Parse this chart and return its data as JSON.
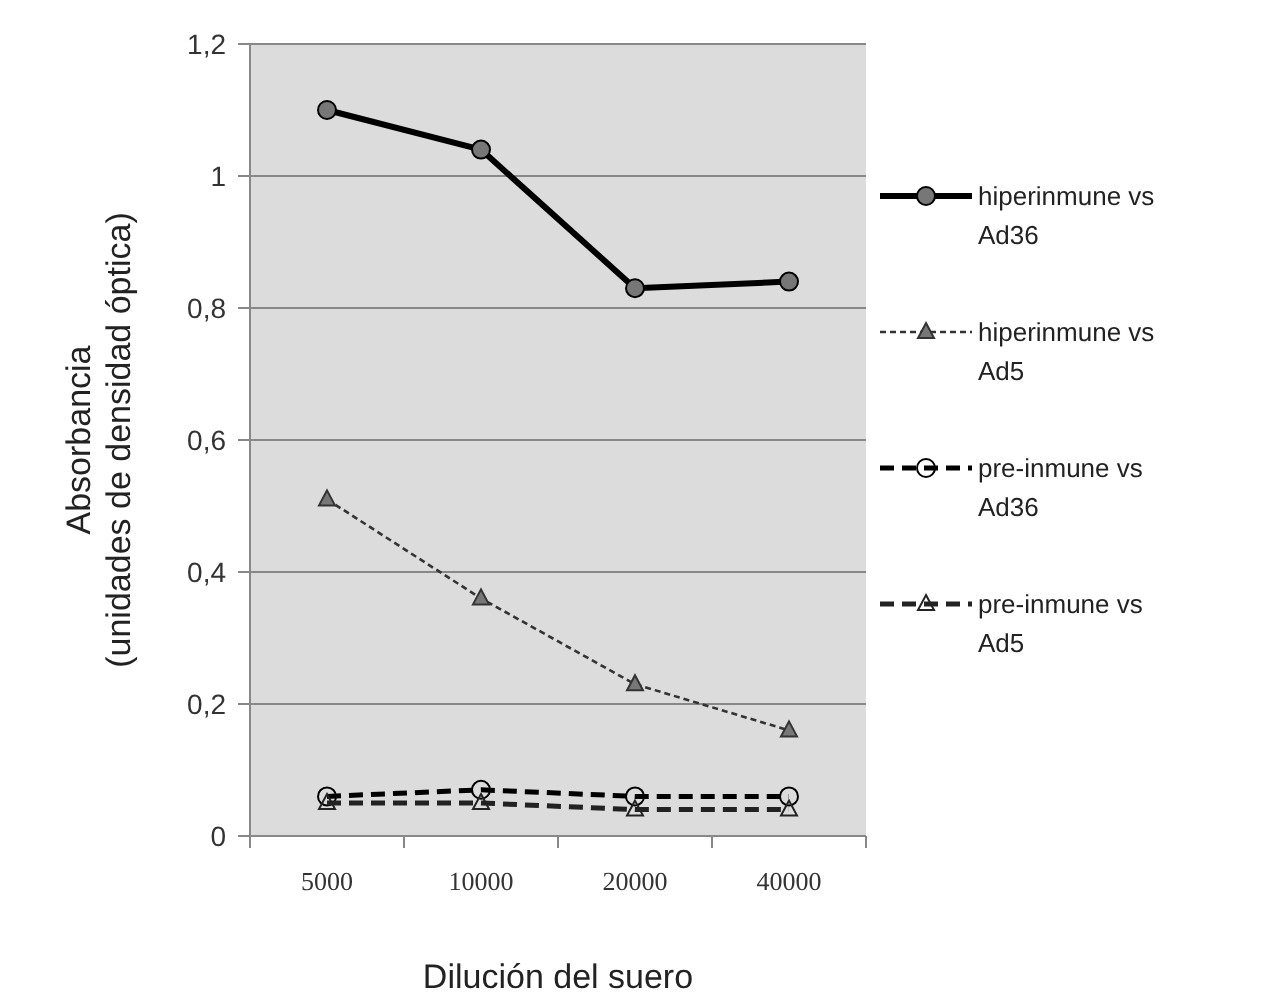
{
  "chart_data": {
    "type": "line",
    "xlabel": "Dilución del suero",
    "ylabel": "Absorbancia\n(unidades de densidad óptica)",
    "categories": [
      "5000",
      "10000",
      "20000",
      "40000"
    ],
    "series": [
      {
        "name": "hiperinmune vs Ad36",
        "color": "#000000",
        "marker": "circle",
        "line_style": "solid",
        "values": [
          1.1,
          1.04,
          0.83,
          0.84
        ]
      },
      {
        "name": "hiperinmune vs Ad5",
        "color": "#333333",
        "marker": "triangle",
        "line_style": "dotted",
        "values": [
          0.51,
          0.36,
          0.23,
          0.16
        ]
      },
      {
        "name": "pre-inmune vs Ad36",
        "color": "#000000",
        "marker": "circle",
        "line_style": "dashed",
        "values": [
          0.06,
          0.07,
          0.06,
          0.06
        ]
      },
      {
        "name": "pre-inmune vs Ad5",
        "color": "#222222",
        "marker": "triangle",
        "line_style": "dashed",
        "values": [
          0.05,
          0.05,
          0.04,
          0.04
        ]
      }
    ],
    "ylim": [
      0,
      1.2
    ],
    "yticks": [
      {
        "value": 0,
        "label": "0"
      },
      {
        "value": 0.2,
        "label": "0,2"
      },
      {
        "value": 0.4,
        "label": "0,4"
      },
      {
        "value": 0.6,
        "label": "0,6"
      },
      {
        "value": 0.8,
        "label": "0,8"
      },
      {
        "value": 1,
        "label": "1"
      },
      {
        "value": 1.2,
        "label": "1,2"
      }
    ],
    "grid": "y",
    "legend": "right"
  }
}
